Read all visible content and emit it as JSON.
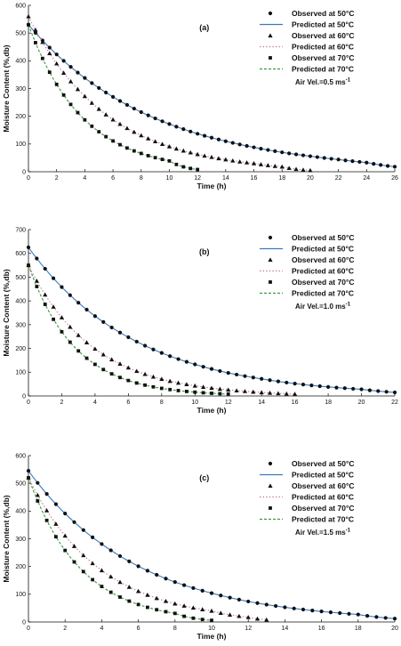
{
  "chart_data": [
    {
      "type": "line",
      "panel_label": "(a)",
      "xlabel": "Time (h)",
      "ylabel": "Moisture Content (%,db)",
      "xlim": [
        0,
        26
      ],
      "ylim": [
        0,
        600
      ],
      "xticks": [
        0,
        2,
        4,
        6,
        8,
        10,
        12,
        14,
        16,
        18,
        20,
        22,
        24,
        26
      ],
      "yticks": [
        0,
        100,
        200,
        300,
        400,
        500,
        600
      ],
      "grid": false,
      "legend_position": "top-right",
      "legend": [
        {
          "label": "Observed at 50°C",
          "kind": "marker",
          "marker": "circle",
          "color": "#111111"
        },
        {
          "label": "Predicted at 50°C",
          "kind": "line",
          "dash": "solid",
          "color": "#3a7abf"
        },
        {
          "label": "Observed at 60°C",
          "kind": "marker",
          "marker": "triangle",
          "color": "#111111"
        },
        {
          "label": "Predicted at 60°C",
          "kind": "line",
          "dash": "dotted",
          "color": "#c07a8a"
        },
        {
          "label": "Observed at 70°C",
          "kind": "marker",
          "marker": "square",
          "color": "#111111"
        },
        {
          "label": "Predicted at 70°C",
          "kind": "line",
          "dash": "dashed",
          "color": "#3a9a3a"
        }
      ],
      "annotation": {
        "text": "Air Vel.=0.5 ms",
        "sup": "-1"
      },
      "series": [
        {
          "temp": "50°C",
          "marker": "circle",
          "line_color": "#3a7abf",
          "line_dash": "solid",
          "x_max": 26,
          "step": 0.5,
          "x": [
            0,
            2,
            4,
            6,
            8,
            10,
            12,
            14,
            16,
            18,
            20,
            22,
            24,
            26
          ],
          "values": [
            530,
            423,
            338,
            270,
            215,
            172,
            137,
            110,
            88,
            70,
            56,
            44,
            33,
            18
          ]
        },
        {
          "temp": "60°C",
          "marker": "triangle",
          "line_color": "#c07a8a",
          "line_dash": "dotted",
          "x_max": 20,
          "step": 0.5,
          "x": [
            0,
            2,
            4,
            6,
            8,
            10,
            12,
            14,
            16,
            18,
            20
          ],
          "values": [
            560,
            390,
            272,
            188,
            131,
            91,
            63,
            44,
            30,
            18,
            5
          ]
        },
        {
          "temp": "70°C",
          "marker": "square",
          "line_color": "#3a9a3a",
          "line_dash": "dashed",
          "x_max": 12,
          "step": 0.5,
          "x": [
            0,
            2,
            4,
            6,
            8,
            10,
            12
          ],
          "values": [
            530,
            315,
            187,
            111,
            66,
            39,
            8
          ]
        }
      ]
    },
    {
      "type": "line",
      "panel_label": "(b)",
      "xlabel": "Time (h)",
      "ylabel": "Moisture Content (%,db)",
      "xlim": [
        0,
        22
      ],
      "ylim": [
        0,
        700
      ],
      "xticks": [
        0,
        2,
        4,
        6,
        8,
        10,
        12,
        14,
        16,
        18,
        20,
        22
      ],
      "yticks": [
        0,
        100,
        200,
        300,
        400,
        500,
        600,
        700
      ],
      "grid": false,
      "legend_position": "top-right",
      "legend": [
        {
          "label": "Observed at 50°C",
          "kind": "marker",
          "marker": "circle",
          "color": "#111111"
        },
        {
          "label": "Predicted at 50°C",
          "kind": "line",
          "dash": "solid",
          "color": "#3a7abf"
        },
        {
          "label": "Observed at 60°C",
          "kind": "marker",
          "marker": "triangle",
          "color": "#111111"
        },
        {
          "label": "Predicted at 60°C",
          "kind": "line",
          "dash": "dotted",
          "color": "#c07a8a"
        },
        {
          "label": "Observed at 70°C",
          "kind": "marker",
          "marker": "square",
          "color": "#111111"
        },
        {
          "label": "Predicted at 70°C",
          "kind": "line",
          "dash": "dashed",
          "color": "#3a9a3a"
        }
      ],
      "annotation": {
        "text": "Air Vel.=1.0 ms",
        "sup": "-1"
      },
      "series": [
        {
          "temp": "50°C",
          "marker": "circle",
          "line_color": "#3a7abf",
          "line_dash": "solid",
          "x_max": 22,
          "step": 0.5,
          "x": [
            0,
            2,
            4,
            6,
            8,
            10,
            12,
            14,
            16,
            18,
            20,
            22
          ],
          "values": [
            625,
            458,
            336,
            247,
            181,
            133,
            97,
            72,
            52,
            38,
            28,
            15
          ]
        },
        {
          "temp": "60°C",
          "marker": "triangle",
          "line_color": "#c07a8a",
          "line_dash": "dotted",
          "x_max": 16,
          "step": 0.5,
          "x": [
            0,
            2,
            4,
            6,
            8,
            10,
            12,
            14,
            16
          ],
          "values": [
            550,
            330,
            198,
            119,
            71,
            43,
            26,
            15,
            8
          ]
        },
        {
          "temp": "70°C",
          "marker": "square",
          "line_color": "#3a9a3a",
          "line_dash": "dashed",
          "x_max": 12,
          "step": 0.5,
          "x": [
            0,
            2,
            4,
            6,
            8,
            10,
            12
          ],
          "values": [
            550,
            270,
            133,
            65,
            32,
            16,
            8
          ]
        }
      ]
    },
    {
      "type": "line",
      "panel_label": "(c)",
      "xlabel": "Time (h)",
      "ylabel": "Moisture Content (%,db)",
      "xlim": [
        0,
        20
      ],
      "ylim": [
        0,
        600
      ],
      "xticks": [
        0,
        2,
        4,
        6,
        8,
        10,
        12,
        14,
        16,
        18,
        20
      ],
      "yticks": [
        0,
        100,
        200,
        300,
        400,
        500,
        600
      ],
      "grid": false,
      "legend_position": "top-right",
      "legend": [
        {
          "label": "Observed at 50°C",
          "kind": "marker",
          "marker": "circle",
          "color": "#111111"
        },
        {
          "label": "Predicted at 50°C",
          "kind": "line",
          "dash": "solid",
          "color": "#3a7abf"
        },
        {
          "label": "Observed at 60°C",
          "kind": "marker",
          "marker": "triangle",
          "color": "#111111"
        },
        {
          "label": "Predicted at 60°C",
          "kind": "line",
          "dash": "dotted",
          "color": "#c07a8a"
        },
        {
          "label": "Observed at 70°C",
          "kind": "marker",
          "marker": "square",
          "color": "#111111"
        },
        {
          "label": "Predicted at 70°C",
          "kind": "line",
          "dash": "dashed",
          "color": "#3a9a3a"
        }
      ],
      "annotation": {
        "text": "Air Vel.=1.5 ms",
        "sup": "-1"
      },
      "series": [
        {
          "temp": "50°C",
          "marker": "circle",
          "line_color": "#3a7abf",
          "line_dash": "solid",
          "x_max": 20,
          "step": 0.5,
          "x": [
            0,
            2,
            4,
            6,
            8,
            10,
            12,
            14,
            16,
            18,
            20
          ],
          "values": [
            545,
            391,
            281,
            201,
            144,
            104,
            74,
            53,
            38,
            27,
            12
          ]
        },
        {
          "temp": "60°C",
          "marker": "triangle",
          "line_color": "#c07a8a",
          "line_dash": "dotted",
          "x_max": 13,
          "step": 0.5,
          "x": [
            0,
            2,
            4,
            6,
            8,
            10,
            12,
            13
          ],
          "values": [
            520,
            311,
            186,
            111,
            66,
            40,
            17,
            8
          ]
        },
        {
          "temp": "70°C",
          "marker": "square",
          "line_color": "#3a9a3a",
          "line_dash": "dashed",
          "x_max": 10,
          "step": 0.5,
          "x": [
            0,
            2,
            4,
            6,
            8,
            10
          ],
          "values": [
            520,
            258,
            128,
            63,
            31,
            6
          ]
        }
      ]
    }
  ]
}
